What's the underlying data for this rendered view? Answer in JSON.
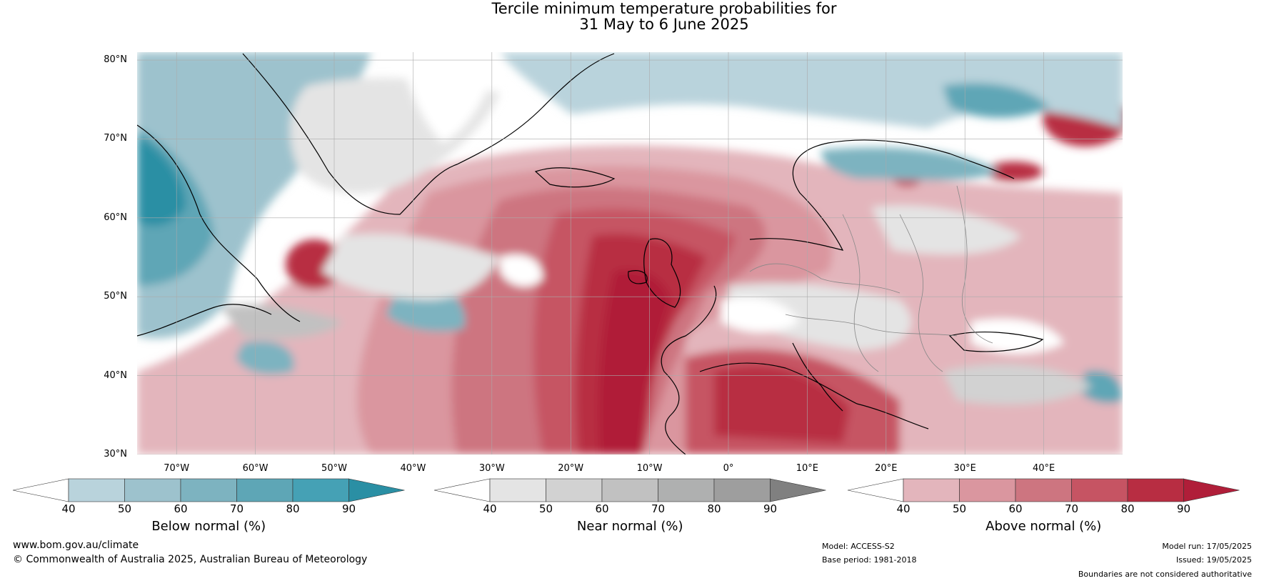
{
  "title": {
    "line1": "Tercile minimum temperature probabilities for",
    "line2": "31 May to 6 June 2025"
  },
  "map": {
    "lat_ticks": [
      "80°N",
      "70°N",
      "60°N",
      "50°N",
      "40°N",
      "30°N"
    ],
    "lon_ticks": [
      "70°W",
      "60°W",
      "50°W",
      "40°W",
      "30°W",
      "20°W",
      "10°W",
      "0°",
      "10°E",
      "20°E",
      "30°E",
      "40°E"
    ],
    "extent": {
      "lon": [
        -75,
        50
      ],
      "lat": [
        30,
        81
      ]
    },
    "grid": true
  },
  "legends": [
    {
      "title": "Below normal (%)",
      "ticks": [
        "40",
        "50",
        "60",
        "70",
        "80",
        "90"
      ],
      "colors": [
        "#ffffff",
        "#b9d3dc",
        "#9dc2cd",
        "#7db3c0",
        "#5ea6b6",
        "#45a1b5",
        "#2a8fa4"
      ]
    },
    {
      "title": "Near normal (%)",
      "ticks": [
        "40",
        "50",
        "60",
        "70",
        "80",
        "90"
      ],
      "colors": [
        "#ffffff",
        "#e4e4e4",
        "#d2d2d2",
        "#c1c1c1",
        "#afb0b0",
        "#9e9e9e",
        "#808080"
      ]
    },
    {
      "title": "Above normal (%)",
      "ticks": [
        "40",
        "50",
        "60",
        "70",
        "80",
        "90"
      ],
      "colors": [
        "#ffffff",
        "#e3b5bc",
        "#da969f",
        "#cd7580",
        "#c65463",
        "#b82d42",
        "#b01e39"
      ]
    }
  ],
  "footer": {
    "url": "www.bom.gov.au/climate",
    "copyright": "© Commonwealth of Australia 2025, Australian Bureau of Meteorology",
    "model": "Model: ACCESS-S2",
    "base_period": "Base period: 1981-2018",
    "model_run": "Model run: 17/05/2025",
    "issued": "Issued: 19/05/2025",
    "disclaimer": "Boundaries are not considered authoritative"
  }
}
